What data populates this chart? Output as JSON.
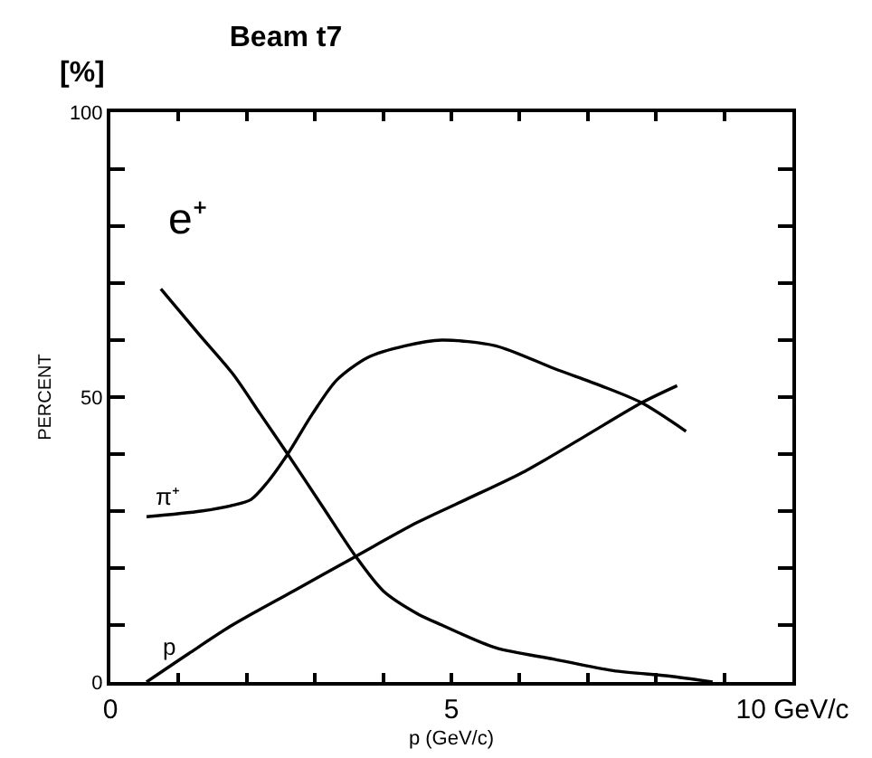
{
  "chart_data": {
    "type": "line",
    "title": "Beam t7",
    "xlabel": "p (GeV/c)",
    "ylabel": "PERCENT",
    "annotations": [
      "[%]"
    ],
    "xlim": [
      0,
      10
    ],
    "xticks": [
      0,
      {
        "value": 1,
        "label": null
      },
      {
        "value": 2,
        "label": null
      },
      {
        "value": 3,
        "label": null
      },
      {
        "value": 4,
        "label": null
      },
      5,
      {
        "value": 6,
        "label": null
      },
      {
        "value": 7,
        "label": null
      },
      {
        "value": 8,
        "label": null
      },
      {
        "value": 9,
        "label": null
      },
      {
        "value": 10,
        "label": "10 GeV/c"
      }
    ],
    "ylim": [
      0,
      100
    ],
    "yticks": [
      0,
      {
        "value": 10,
        "label": null
      },
      {
        "value": 20,
        "label": null
      },
      {
        "value": 30,
        "label": null
      },
      {
        "value": 40,
        "label": null
      },
      50,
      {
        "value": 60,
        "label": null
      },
      {
        "value": 70,
        "label": null
      },
      {
        "value": 80,
        "label": null
      },
      {
        "value": 90,
        "label": null
      },
      100
    ],
    "grid": false,
    "legend": false,
    "line_style": "solid",
    "series": [
      {
        "name": "e⁺",
        "color": "#000000",
        "x": [
          0.74,
          1.3,
          1.8,
          2.2,
          2.6,
          3.1,
          3.6,
          4.0,
          4.5,
          4.86,
          5.65,
          6.51,
          7.37,
          8.23,
          8.83
        ],
        "values": [
          69,
          61,
          54,
          47,
          40,
          31,
          22,
          16,
          12,
          10,
          6,
          4,
          2,
          1,
          0
        ]
      },
      {
        "name": "π⁺",
        "color": "#000000",
        "x": [
          0.53,
          1.33,
          1.79,
          2.06,
          2.3,
          2.6,
          2.96,
          3.32,
          3.78,
          4.32,
          4.86,
          5.65,
          6.51,
          7.19,
          7.79,
          8.44
        ],
        "values": [
          29,
          30,
          31,
          32,
          35,
          40,
          47,
          53,
          57,
          59,
          60,
          59,
          55,
          52,
          49,
          44
        ]
      },
      {
        "name": "p",
        "color": "#000000",
        "x": [
          0.53,
          1.15,
          1.79,
          2.69,
          3.59,
          4.5,
          5.21,
          6.08,
          6.94,
          7.79,
          8.31
        ],
        "values": [
          0,
          5,
          10,
          16,
          22,
          28,
          32,
          37,
          43,
          49,
          52
        ]
      }
    ]
  }
}
